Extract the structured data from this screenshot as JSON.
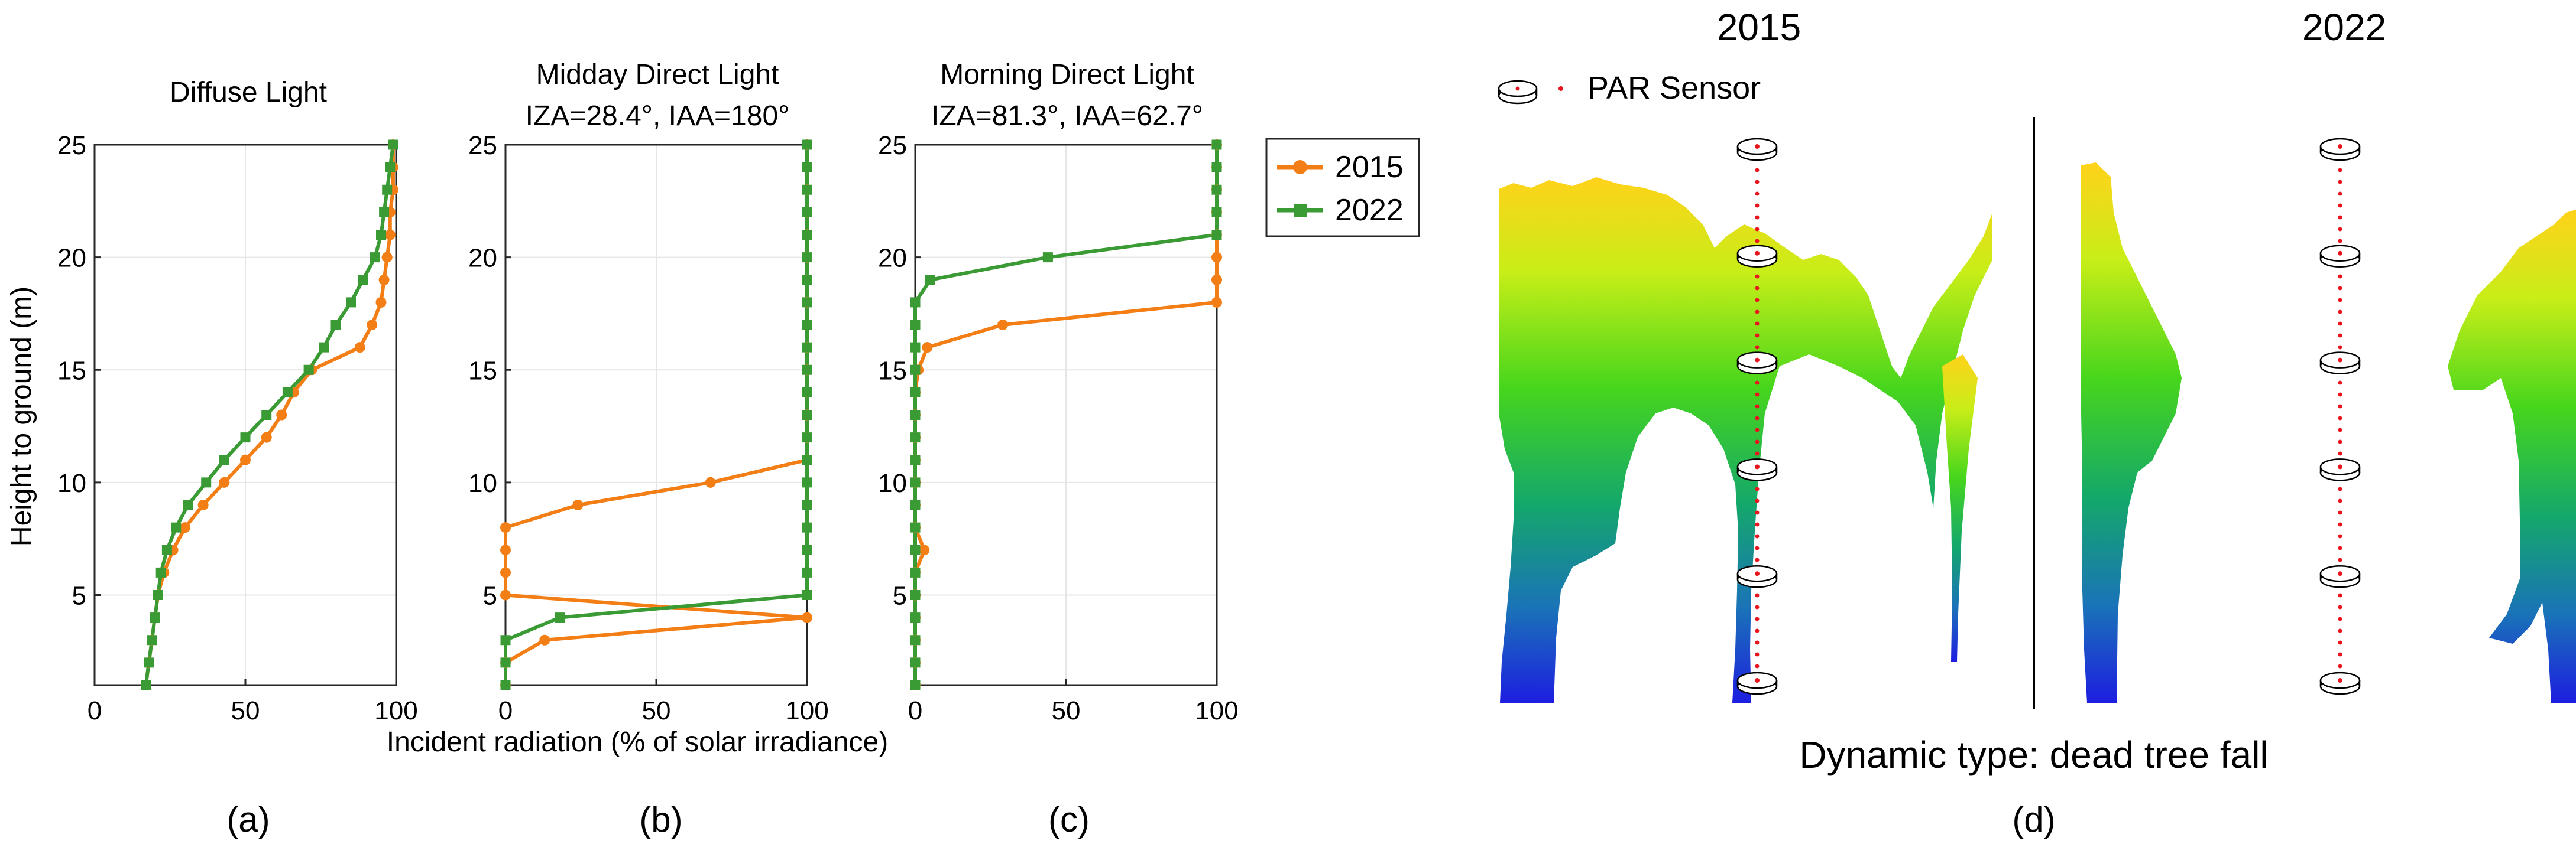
{
  "colors": {
    "series_2015": "#f47e16",
    "series_2022": "#3a9b34",
    "grid": "#e6e6e6",
    "axis": "#262626",
    "sensor_dot": "#e8141e",
    "divider": "#000000"
  },
  "shared": {
    "ylabel": "Height to ground (m)",
    "xlabel": "Incident radiation (% of solar irradiance)"
  },
  "legend": {
    "entries": [
      "2015",
      "2022"
    ]
  },
  "panel_d": {
    "year_left": "2015",
    "year_right": "2022",
    "sensor_label": "PAR Sensor",
    "caption": "Dynamic type: dead tree fall",
    "letter": "(d)",
    "sensor_count": 6
  },
  "chart_data": [
    {
      "type": "line",
      "title": "Diffuse Light",
      "subtitle": "",
      "letter": "(a)",
      "xlim": [
        0,
        100
      ],
      "ylim": [
        1,
        25
      ],
      "xticks": [
        0,
        50,
        100
      ],
      "yticks": [
        5,
        10,
        15,
        20,
        25
      ],
      "grid": true,
      "series": [
        {
          "name": "2015",
          "marker": "circle",
          "x": [
            17,
            18,
            19,
            20,
            21,
            23,
            26,
            30,
            36,
            43,
            50,
            57,
            62,
            66,
            72,
            88,
            92,
            95,
            96,
            97,
            98,
            98,
            99,
            99,
            99
          ],
          "y": [
            1,
            2,
            3,
            4,
            5,
            6,
            7,
            8,
            9,
            10,
            11,
            12,
            13,
            14,
            15,
            16,
            17,
            18,
            19,
            20,
            21,
            22,
            23,
            24,
            25
          ]
        },
        {
          "name": "2022",
          "marker": "square",
          "x": [
            17,
            18,
            19,
            20,
            21,
            22,
            24,
            27,
            31,
            37,
            43,
            50,
            57,
            64,
            71,
            76,
            80,
            85,
            89,
            93,
            95,
            96,
            97,
            98,
            99
          ],
          "y": [
            1,
            2,
            3,
            4,
            5,
            6,
            7,
            8,
            9,
            10,
            11,
            12,
            13,
            14,
            15,
            16,
            17,
            18,
            19,
            20,
            21,
            22,
            23,
            24,
            25
          ]
        }
      ]
    },
    {
      "type": "line",
      "title": "Midday Direct Light",
      "subtitle": "IZA=28.4°, IAA=180°",
      "letter": "(b)",
      "xlim": [
        0,
        100
      ],
      "ylim": [
        1,
        25
      ],
      "xticks": [
        0,
        50,
        100
      ],
      "yticks": [
        5,
        10,
        15,
        20,
        25
      ],
      "grid": true,
      "series": [
        {
          "name": "2015",
          "marker": "circle",
          "x": [
            0,
            0,
            13,
            100,
            0,
            0,
            0,
            0,
            24,
            68,
            100,
            100,
            100,
            100,
            100,
            100,
            100,
            100,
            100,
            100,
            100,
            100,
            100,
            100,
            100
          ],
          "y": [
            1,
            2,
            3,
            4,
            5,
            6,
            7,
            8,
            9,
            10,
            11,
            12,
            13,
            14,
            15,
            16,
            17,
            18,
            19,
            20,
            21,
            22,
            23,
            24,
            25
          ]
        },
        {
          "name": "2022",
          "marker": "square",
          "x": [
            0,
            0,
            0,
            18,
            100,
            100,
            100,
            100,
            100,
            100,
            100,
            100,
            100,
            100,
            100,
            100,
            100,
            100,
            100,
            100,
            100,
            100,
            100,
            100,
            100
          ],
          "y": [
            1,
            2,
            3,
            4,
            5,
            6,
            7,
            8,
            9,
            10,
            11,
            12,
            13,
            14,
            15,
            16,
            17,
            18,
            19,
            20,
            21,
            22,
            23,
            24,
            25
          ]
        }
      ]
    },
    {
      "type": "line",
      "title": "Morning Direct Light",
      "subtitle": "IZA=81.3°, IAA=62.7°",
      "letter": "(c)",
      "xlim": [
        0,
        100
      ],
      "ylim": [
        1,
        25
      ],
      "xticks": [
        0,
        50,
        100
      ],
      "yticks": [
        5,
        10,
        15,
        20,
        25
      ],
      "grid": true,
      "series": [
        {
          "name": "2015",
          "marker": "circle",
          "x": [
            0,
            0,
            0,
            0,
            0,
            0,
            3,
            0,
            0,
            0,
            0,
            0,
            0,
            0,
            1,
            4,
            29,
            100,
            100,
            100,
            100,
            100,
            100,
            100,
            100
          ],
          "y": [
            1,
            2,
            3,
            4,
            5,
            6,
            7,
            8,
            9,
            10,
            11,
            12,
            13,
            14,
            15,
            16,
            17,
            18,
            19,
            20,
            21,
            22,
            23,
            24,
            25
          ]
        },
        {
          "name": "2022",
          "marker": "square",
          "x": [
            0,
            0,
            0,
            0,
            0,
            0,
            0,
            0,
            0,
            0,
            0,
            0,
            0,
            0,
            0,
            0,
            0,
            0,
            5,
            44,
            100,
            100,
            100,
            100,
            100
          ],
          "y": [
            1,
            2,
            3,
            4,
            5,
            6,
            7,
            8,
            9,
            10,
            11,
            12,
            13,
            14,
            15,
            16,
            17,
            18,
            19,
            20,
            21,
            22,
            23,
            24,
            25
          ]
        }
      ]
    }
  ]
}
